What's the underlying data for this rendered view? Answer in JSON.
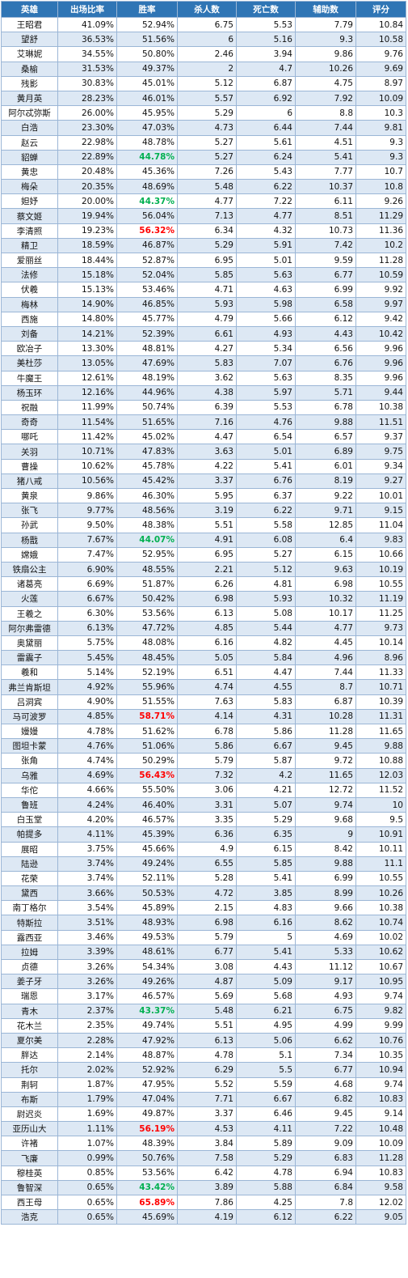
{
  "headers": [
    "英雄",
    "出场比率",
    "胜率",
    "杀人数",
    "死亡数",
    "辅助数",
    "评分"
  ],
  "highlight_colors": {
    "green": "#00b050",
    "red": "#ff0000"
  },
  "rows": [
    {
      "hero": "王昭君",
      "pick": "41.09%",
      "win": "52.94%",
      "kills": "6.75",
      "deaths": "5.53",
      "assists": "7.79",
      "score": "10.84",
      "hl": ""
    },
    {
      "hero": "望舒",
      "pick": "36.53%",
      "win": "51.56%",
      "kills": "6",
      "deaths": "5.16",
      "assists": "9.3",
      "score": "10.58",
      "hl": ""
    },
    {
      "hero": "艾琳妮",
      "pick": "34.55%",
      "win": "50.80%",
      "kills": "2.46",
      "deaths": "3.94",
      "assists": "9.86",
      "score": "9.76",
      "hl": ""
    },
    {
      "hero": "桑榆",
      "pick": "31.53%",
      "win": "49.37%",
      "kills": "2",
      "deaths": "4.7",
      "assists": "10.26",
      "score": "9.69",
      "hl": ""
    },
    {
      "hero": "残影",
      "pick": "30.83%",
      "win": "45.01%",
      "kills": "5.12",
      "deaths": "6.87",
      "assists": "4.75",
      "score": "8.97",
      "hl": ""
    },
    {
      "hero": "黄月英",
      "pick": "28.23%",
      "win": "46.01%",
      "kills": "5.57",
      "deaths": "6.92",
      "assists": "7.92",
      "score": "10.09",
      "hl": ""
    },
    {
      "hero": "阿尔忒弥斯",
      "pick": "26.00%",
      "win": "45.95%",
      "kills": "5.29",
      "deaths": "6",
      "assists": "8.8",
      "score": "10.3",
      "hl": ""
    },
    {
      "hero": "白浩",
      "pick": "23.30%",
      "win": "47.03%",
      "kills": "4.73",
      "deaths": "6.44",
      "assists": "7.44",
      "score": "9.81",
      "hl": ""
    },
    {
      "hero": "赵云",
      "pick": "22.98%",
      "win": "48.78%",
      "kills": "5.27",
      "deaths": "5.61",
      "assists": "4.51",
      "score": "9.3",
      "hl": ""
    },
    {
      "hero": "貂蝉",
      "pick": "22.89%",
      "win": "44.78%",
      "kills": "5.27",
      "deaths": "6.24",
      "assists": "5.41",
      "score": "9.3",
      "hl": "green"
    },
    {
      "hero": "黄忠",
      "pick": "20.48%",
      "win": "45.36%",
      "kills": "7.26",
      "deaths": "5.43",
      "assists": "7.77",
      "score": "10.7",
      "hl": ""
    },
    {
      "hero": "梅朵",
      "pick": "20.35%",
      "win": "48.69%",
      "kills": "5.48",
      "deaths": "6.22",
      "assists": "10.37",
      "score": "10.8",
      "hl": ""
    },
    {
      "hero": "妲妤",
      "pick": "20.00%",
      "win": "44.37%",
      "kills": "4.77",
      "deaths": "7.22",
      "assists": "6.11",
      "score": "9.26",
      "hl": "green"
    },
    {
      "hero": "蔡文姬",
      "pick": "19.94%",
      "win": "56.04%",
      "kills": "7.13",
      "deaths": "4.77",
      "assists": "8.51",
      "score": "11.29",
      "hl": ""
    },
    {
      "hero": "李清照",
      "pick": "19.23%",
      "win": "56.32%",
      "kills": "6.34",
      "deaths": "4.32",
      "assists": "10.73",
      "score": "11.36",
      "hl": "red"
    },
    {
      "hero": "精卫",
      "pick": "18.59%",
      "win": "46.87%",
      "kills": "5.29",
      "deaths": "5.91",
      "assists": "7.42",
      "score": "10.2",
      "hl": ""
    },
    {
      "hero": "爱丽丝",
      "pick": "18.44%",
      "win": "52.87%",
      "kills": "6.95",
      "deaths": "5.01",
      "assists": "9.59",
      "score": "11.28",
      "hl": ""
    },
    {
      "hero": "法修",
      "pick": "15.18%",
      "win": "52.04%",
      "kills": "5.85",
      "deaths": "5.63",
      "assists": "6.77",
      "score": "10.59",
      "hl": ""
    },
    {
      "hero": "伏羲",
      "pick": "15.13%",
      "win": "53.46%",
      "kills": "4.71",
      "deaths": "4.63",
      "assists": "6.99",
      "score": "9.92",
      "hl": ""
    },
    {
      "hero": "梅林",
      "pick": "14.90%",
      "win": "46.85%",
      "kills": "5.93",
      "deaths": "5.98",
      "assists": "6.58",
      "score": "9.97",
      "hl": ""
    },
    {
      "hero": "西施",
      "pick": "14.80%",
      "win": "45.77%",
      "kills": "4.79",
      "deaths": "5.66",
      "assists": "6.12",
      "score": "9.42",
      "hl": ""
    },
    {
      "hero": "刘备",
      "pick": "14.21%",
      "win": "52.39%",
      "kills": "6.61",
      "deaths": "4.93",
      "assists": "4.43",
      "score": "10.42",
      "hl": ""
    },
    {
      "hero": "欧冶子",
      "pick": "13.30%",
      "win": "48.81%",
      "kills": "4.27",
      "deaths": "5.34",
      "assists": "6.56",
      "score": "9.96",
      "hl": ""
    },
    {
      "hero": "美杜莎",
      "pick": "13.05%",
      "win": "47.69%",
      "kills": "5.83",
      "deaths": "7.07",
      "assists": "6.76",
      "score": "9.96",
      "hl": ""
    },
    {
      "hero": "牛魔王",
      "pick": "12.61%",
      "win": "48.19%",
      "kills": "3.62",
      "deaths": "5.63",
      "assists": "8.35",
      "score": "9.96",
      "hl": ""
    },
    {
      "hero": "杨玉环",
      "pick": "12.16%",
      "win": "44.96%",
      "kills": "4.38",
      "deaths": "5.97",
      "assists": "5.71",
      "score": "9.44",
      "hl": ""
    },
    {
      "hero": "祝融",
      "pick": "11.99%",
      "win": "50.74%",
      "kills": "6.39",
      "deaths": "5.53",
      "assists": "6.78",
      "score": "10.38",
      "hl": ""
    },
    {
      "hero": "奇奇",
      "pick": "11.54%",
      "win": "51.65%",
      "kills": "7.16",
      "deaths": "4.76",
      "assists": "9.88",
      "score": "11.51",
      "hl": ""
    },
    {
      "hero": "哪吒",
      "pick": "11.42%",
      "win": "45.02%",
      "kills": "4.47",
      "deaths": "6.54",
      "assists": "6.57",
      "score": "9.37",
      "hl": ""
    },
    {
      "hero": "关羽",
      "pick": "10.71%",
      "win": "47.83%",
      "kills": "3.63",
      "deaths": "5.01",
      "assists": "6.89",
      "score": "9.75",
      "hl": ""
    },
    {
      "hero": "曹操",
      "pick": "10.62%",
      "win": "45.78%",
      "kills": "4.22",
      "deaths": "5.41",
      "assists": "6.01",
      "score": "9.34",
      "hl": ""
    },
    {
      "hero": "猪八戒",
      "pick": "10.56%",
      "win": "45.42%",
      "kills": "3.37",
      "deaths": "6.76",
      "assists": "8.19",
      "score": "9.27",
      "hl": ""
    },
    {
      "hero": "黄泉",
      "pick": "9.86%",
      "win": "46.30%",
      "kills": "5.95",
      "deaths": "6.37",
      "assists": "9.22",
      "score": "10.01",
      "hl": ""
    },
    {
      "hero": "张飞",
      "pick": "9.77%",
      "win": "48.56%",
      "kills": "3.19",
      "deaths": "6.22",
      "assists": "9.71",
      "score": "9.15",
      "hl": ""
    },
    {
      "hero": "孙武",
      "pick": "9.50%",
      "win": "48.38%",
      "kills": "5.51",
      "deaths": "5.58",
      "assists": "12.85",
      "score": "11.04",
      "hl": ""
    },
    {
      "hero": "杨戬",
      "pick": "7.67%",
      "win": "44.07%",
      "kills": "4.91",
      "deaths": "6.08",
      "assists": "6.4",
      "score": "9.83",
      "hl": "green"
    },
    {
      "hero": "嫦娥",
      "pick": "7.47%",
      "win": "52.95%",
      "kills": "6.95",
      "deaths": "5.27",
      "assists": "6.15",
      "score": "10.66",
      "hl": ""
    },
    {
      "hero": "铁扇公主",
      "pick": "6.90%",
      "win": "48.55%",
      "kills": "2.21",
      "deaths": "5.12",
      "assists": "9.63",
      "score": "10.19",
      "hl": ""
    },
    {
      "hero": "诸葛亮",
      "pick": "6.69%",
      "win": "51.87%",
      "kills": "6.26",
      "deaths": "4.81",
      "assists": "6.98",
      "score": "10.55",
      "hl": ""
    },
    {
      "hero": "火莲",
      "pick": "6.67%",
      "win": "50.42%",
      "kills": "6.98",
      "deaths": "5.93",
      "assists": "10.32",
      "score": "11.19",
      "hl": ""
    },
    {
      "hero": "王羲之",
      "pick": "6.30%",
      "win": "53.56%",
      "kills": "6.13",
      "deaths": "5.08",
      "assists": "10.17",
      "score": "11.25",
      "hl": ""
    },
    {
      "hero": "阿尔弗雷德",
      "pick": "6.13%",
      "win": "47.72%",
      "kills": "4.85",
      "deaths": "5.44",
      "assists": "4.77",
      "score": "9.73",
      "hl": ""
    },
    {
      "hero": "奥黛丽",
      "pick": "5.75%",
      "win": "48.08%",
      "kills": "6.16",
      "deaths": "4.82",
      "assists": "4.45",
      "score": "10.14",
      "hl": ""
    },
    {
      "hero": "雷震子",
      "pick": "5.45%",
      "win": "48.45%",
      "kills": "5.05",
      "deaths": "5.84",
      "assists": "4.96",
      "score": "8.96",
      "hl": ""
    },
    {
      "hero": "羲和",
      "pick": "5.14%",
      "win": "52.19%",
      "kills": "6.51",
      "deaths": "4.47",
      "assists": "7.44",
      "score": "11.33",
      "hl": ""
    },
    {
      "hero": "弗兰肯斯坦",
      "pick": "4.92%",
      "win": "55.96%",
      "kills": "4.74",
      "deaths": "4.55",
      "assists": "8.7",
      "score": "10.71",
      "hl": ""
    },
    {
      "hero": "吕洞宾",
      "pick": "4.90%",
      "win": "51.55%",
      "kills": "7.63",
      "deaths": "5.83",
      "assists": "6.87",
      "score": "10.39",
      "hl": ""
    },
    {
      "hero": "马可波罗",
      "pick": "4.85%",
      "win": "58.71%",
      "kills": "4.14",
      "deaths": "4.31",
      "assists": "10.28",
      "score": "11.31",
      "hl": "red"
    },
    {
      "hero": "嫚嫚",
      "pick": "4.78%",
      "win": "51.62%",
      "kills": "6.78",
      "deaths": "5.86",
      "assists": "11.28",
      "score": "11.65",
      "hl": ""
    },
    {
      "hero": "图坦卡蒙",
      "pick": "4.76%",
      "win": "51.06%",
      "kills": "5.86",
      "deaths": "6.67",
      "assists": "9.45",
      "score": "9.88",
      "hl": ""
    },
    {
      "hero": "张角",
      "pick": "4.74%",
      "win": "50.29%",
      "kills": "5.79",
      "deaths": "5.87",
      "assists": "9.72",
      "score": "10.88",
      "hl": ""
    },
    {
      "hero": "乌雅",
      "pick": "4.69%",
      "win": "56.43%",
      "kills": "7.32",
      "deaths": "4.2",
      "assists": "11.65",
      "score": "12.03",
      "hl": "red"
    },
    {
      "hero": "华佗",
      "pick": "4.66%",
      "win": "55.50%",
      "kills": "3.06",
      "deaths": "4.21",
      "assists": "12.72",
      "score": "11.52",
      "hl": ""
    },
    {
      "hero": "鲁班",
      "pick": "4.24%",
      "win": "46.40%",
      "kills": "3.31",
      "deaths": "5.07",
      "assists": "9.74",
      "score": "10",
      "hl": ""
    },
    {
      "hero": "白玉堂",
      "pick": "4.20%",
      "win": "46.57%",
      "kills": "3.35",
      "deaths": "5.29",
      "assists": "9.68",
      "score": "9.5",
      "hl": ""
    },
    {
      "hero": "帕提多",
      "pick": "4.11%",
      "win": "45.39%",
      "kills": "6.36",
      "deaths": "6.35",
      "assists": "9",
      "score": "10.91",
      "hl": ""
    },
    {
      "hero": "展昭",
      "pick": "3.75%",
      "win": "45.66%",
      "kills": "4.9",
      "deaths": "6.15",
      "assists": "8.42",
      "score": "10.11",
      "hl": ""
    },
    {
      "hero": "陆逊",
      "pick": "3.74%",
      "win": "49.24%",
      "kills": "6.55",
      "deaths": "5.85",
      "assists": "9.88",
      "score": "11.1",
      "hl": ""
    },
    {
      "hero": "花荣",
      "pick": "3.74%",
      "win": "52.11%",
      "kills": "5.28",
      "deaths": "5.41",
      "assists": "6.99",
      "score": "10.55",
      "hl": ""
    },
    {
      "hero": "黛西",
      "pick": "3.66%",
      "win": "50.53%",
      "kills": "4.72",
      "deaths": "3.85",
      "assists": "8.99",
      "score": "10.26",
      "hl": ""
    },
    {
      "hero": "南丁格尔",
      "pick": "3.54%",
      "win": "45.89%",
      "kills": "2.15",
      "deaths": "4.83",
      "assists": "9.66",
      "score": "10.38",
      "hl": ""
    },
    {
      "hero": "特斯拉",
      "pick": "3.51%",
      "win": "48.93%",
      "kills": "6.98",
      "deaths": "6.16",
      "assists": "8.62",
      "score": "10.74",
      "hl": ""
    },
    {
      "hero": "露西亚",
      "pick": "3.46%",
      "win": "49.53%",
      "kills": "5.79",
      "deaths": "5",
      "assists": "4.69",
      "score": "10.02",
      "hl": ""
    },
    {
      "hero": "拉姆",
      "pick": "3.39%",
      "win": "48.61%",
      "kills": "6.77",
      "deaths": "5.41",
      "assists": "5.33",
      "score": "10.62",
      "hl": ""
    },
    {
      "hero": "贞德",
      "pick": "3.26%",
      "win": "54.34%",
      "kills": "3.08",
      "deaths": "4.43",
      "assists": "11.12",
      "score": "10.67",
      "hl": ""
    },
    {
      "hero": "姜子牙",
      "pick": "3.26%",
      "win": "49.26%",
      "kills": "4.87",
      "deaths": "5.09",
      "assists": "9.17",
      "score": "10.95",
      "hl": ""
    },
    {
      "hero": "瑞恩",
      "pick": "3.17%",
      "win": "46.57%",
      "kills": "5.69",
      "deaths": "5.68",
      "assists": "4.93",
      "score": "9.74",
      "hl": ""
    },
    {
      "hero": "青木",
      "pick": "2.37%",
      "win": "43.37%",
      "kills": "5.48",
      "deaths": "6.21",
      "assists": "6.75",
      "score": "9.82",
      "hl": "green"
    },
    {
      "hero": "花木兰",
      "pick": "2.35%",
      "win": "49.74%",
      "kills": "5.51",
      "deaths": "4.95",
      "assists": "4.99",
      "score": "9.99",
      "hl": ""
    },
    {
      "hero": "夏尔美",
      "pick": "2.28%",
      "win": "47.92%",
      "kills": "6.13",
      "deaths": "5.06",
      "assists": "6.62",
      "score": "10.76",
      "hl": ""
    },
    {
      "hero": "胖达",
      "pick": "2.14%",
      "win": "48.87%",
      "kills": "4.78",
      "deaths": "5.1",
      "assists": "7.34",
      "score": "10.35",
      "hl": ""
    },
    {
      "hero": "托尔",
      "pick": "2.02%",
      "win": "52.92%",
      "kills": "6.29",
      "deaths": "5.5",
      "assists": "6.77",
      "score": "10.94",
      "hl": ""
    },
    {
      "hero": "荆轲",
      "pick": "1.87%",
      "win": "47.95%",
      "kills": "5.52",
      "deaths": "5.59",
      "assists": "4.68",
      "score": "9.74",
      "hl": ""
    },
    {
      "hero": "布斯",
      "pick": "1.79%",
      "win": "47.04%",
      "kills": "7.71",
      "deaths": "6.67",
      "assists": "6.82",
      "score": "10.83",
      "hl": ""
    },
    {
      "hero": "尉迟炎",
      "pick": "1.69%",
      "win": "49.87%",
      "kills": "3.37",
      "deaths": "6.46",
      "assists": "9.45",
      "score": "9.14",
      "hl": ""
    },
    {
      "hero": "亚历山大",
      "pick": "1.11%",
      "win": "56.19%",
      "kills": "4.53",
      "deaths": "4.11",
      "assists": "7.22",
      "score": "10.48",
      "hl": "red"
    },
    {
      "hero": "许褚",
      "pick": "1.07%",
      "win": "48.39%",
      "kills": "3.84",
      "deaths": "5.89",
      "assists": "9.09",
      "score": "10.09",
      "hl": ""
    },
    {
      "hero": "飞廉",
      "pick": "0.99%",
      "win": "50.76%",
      "kills": "7.58",
      "deaths": "5.29",
      "assists": "6.83",
      "score": "11.28",
      "hl": ""
    },
    {
      "hero": "穆桂英",
      "pick": "0.85%",
      "win": "53.56%",
      "kills": "6.42",
      "deaths": "4.78",
      "assists": "6.94",
      "score": "10.83",
      "hl": ""
    },
    {
      "hero": "鲁智深",
      "pick": "0.65%",
      "win": "43.42%",
      "kills": "3.89",
      "deaths": "5.88",
      "assists": "6.84",
      "score": "9.58",
      "hl": "green"
    },
    {
      "hero": "西王母",
      "pick": "0.65%",
      "win": "65.89%",
      "kills": "7.86",
      "deaths": "4.25",
      "assists": "7.8",
      "score": "12.02",
      "hl": "red"
    },
    {
      "hero": "浩克",
      "pick": "0.65%",
      "win": "45.69%",
      "kills": "4.19",
      "deaths": "6.12",
      "assists": "6.22",
      "score": "9.05",
      "hl": ""
    }
  ]
}
